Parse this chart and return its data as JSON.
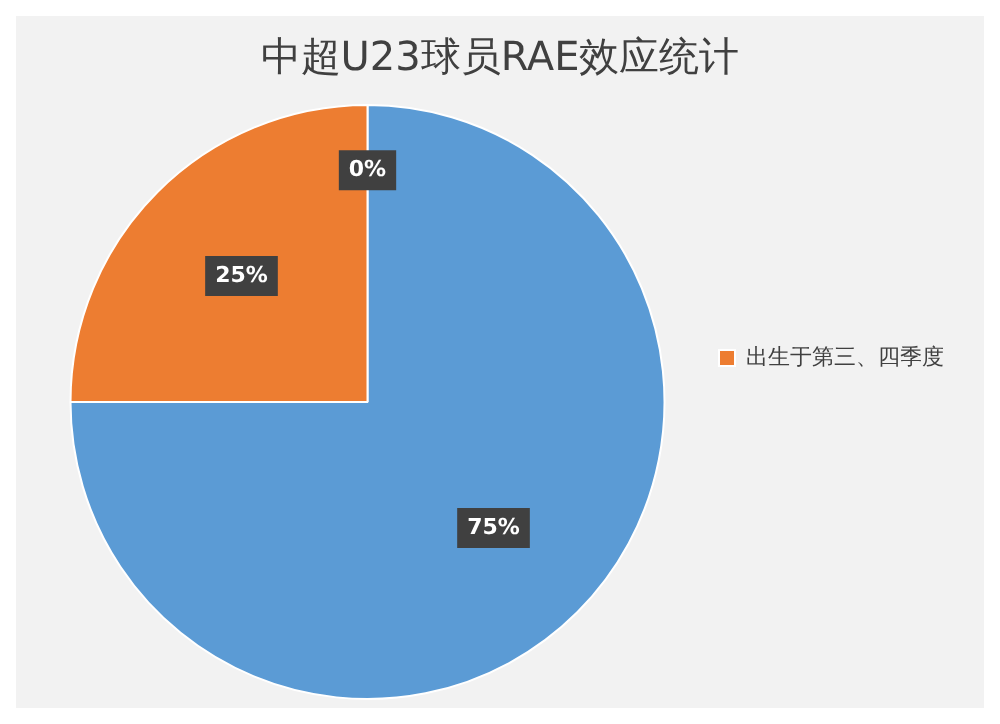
{
  "chart_data": {
    "type": "pie",
    "title": "中超U23球员RAE效应统计",
    "categories": [
      null,
      "出生于第三、四季度",
      null
    ],
    "values": [
      75,
      25,
      0
    ],
    "colors": [
      "#5b9bd5",
      "#ed7d31",
      "#a5a5a5"
    ],
    "value_labels": [
      "75%",
      "25%",
      "0%"
    ],
    "legend": "right"
  }
}
